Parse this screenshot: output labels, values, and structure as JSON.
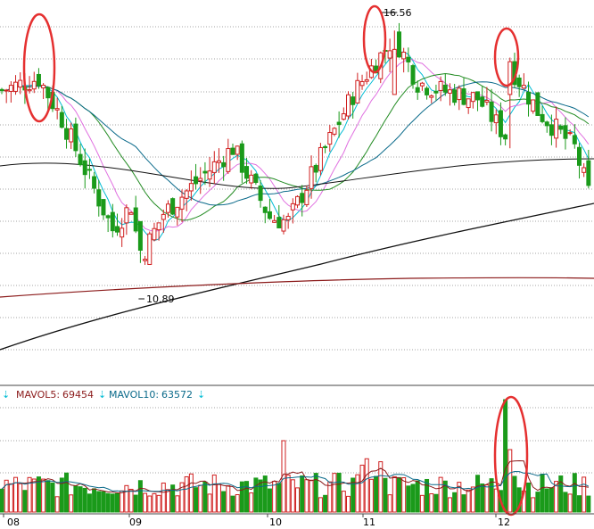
{
  "chart_data": [
    {
      "type": "candlestick",
      "panel": "price",
      "annotations": {
        "high": {
          "value": "16.56"
        },
        "low": {
          "value": "10.89"
        }
      },
      "ylim": [
        8.6,
        17.0
      ],
      "ma_colors": [
        "#00bcd4",
        "#e070e0",
        "#228b22",
        "#0a6a8a",
        "#111111",
        "#8b1a1a",
        "#7a1f7a"
      ],
      "up_color": "#d02020",
      "down_color": "#1a9a1a",
      "highlight_color": "#e53030"
    },
    {
      "type": "bar",
      "panel": "volume",
      "legend": [
        {
          "label": "MAVOL5:",
          "value": "69454",
          "color": "#8b1a1a"
        },
        {
          "label": "MAVOL10:",
          "value": "63572",
          "color": "#0a6a8a"
        }
      ],
      "legend_marker": "⇣",
      "x_tick_labels": [
        "08",
        "09",
        "10",
        "11",
        "12"
      ]
    }
  ]
}
